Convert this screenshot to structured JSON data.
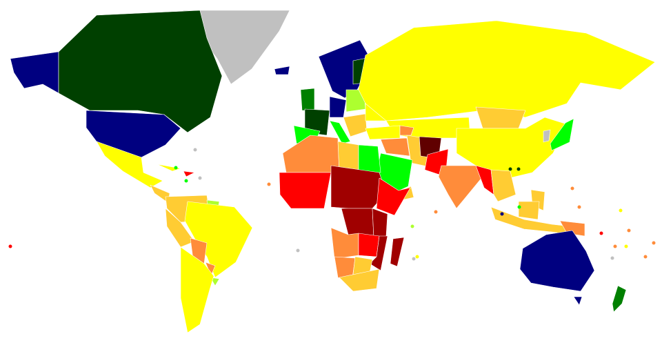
{
  "map": {
    "type": "choropleth-world-map",
    "background": "#ffffff",
    "border_color": "#ffffff",
    "palette": {
      "navy": "#000080",
      "dark_green": "#004000",
      "green": "#008000",
      "lime": "#00ff00",
      "yellow_green": "#adff2f",
      "yellow": "#ffff00",
      "gold": "#ffcc33",
      "orange": "#ff8c3a",
      "red": "#ff0000",
      "dark_red": "#a00000",
      "maroon": "#600000",
      "no_data": "#c0c0c0"
    }
  }
}
